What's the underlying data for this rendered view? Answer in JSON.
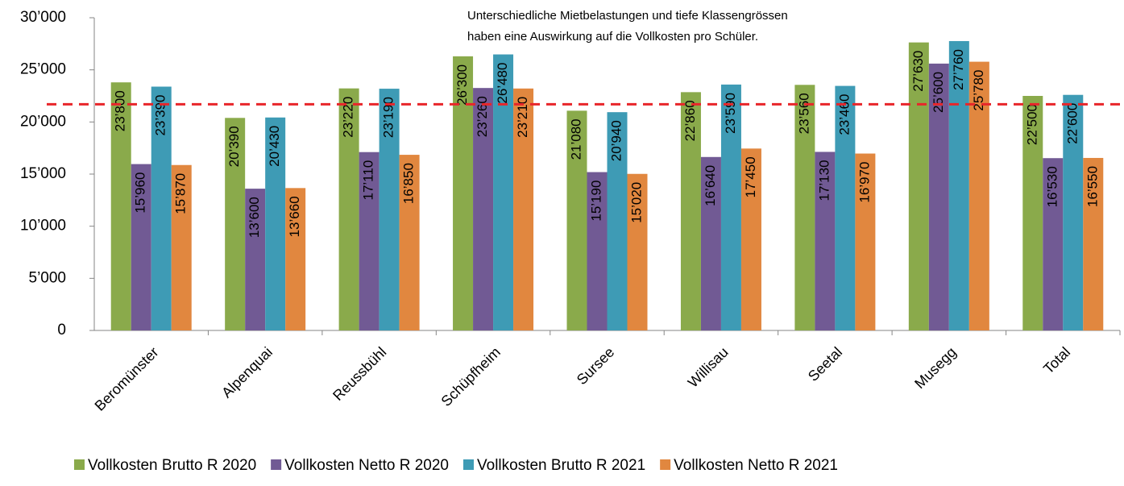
{
  "chart_data": {
    "type": "bar",
    "annotation": [
      "Unterschiedliche Mietbelastungen und tiefe Klassengrössen",
      "haben eine Auswirkung auf die Vollkosten pro Schüler."
    ],
    "categories": [
      "Beromünster",
      "Alpenquai",
      "Reussbühl",
      "Schüpfheim",
      "Sursee",
      "Willisau",
      "Seetal",
      "Musegg",
      "Total"
    ],
    "series": [
      {
        "name": "Vollkosten Brutto R 2020",
        "color": "#8aaa4b",
        "values": [
          23800,
          20390,
          23220,
          26300,
          21080,
          22860,
          23560,
          27630,
          22500
        ],
        "value_labels": [
          "23’800",
          "20’390",
          "23’220",
          "26’300",
          "21’080",
          "22’860",
          "23’560",
          "27’630",
          "22’500"
        ]
      },
      {
        "name": "Vollkosten Netto R 2020",
        "color": "#715a94",
        "values": [
          15960,
          13600,
          17110,
          23260,
          15190,
          16640,
          17130,
          25600,
          16530
        ],
        "value_labels": [
          "15’960",
          "13’600",
          "17’110",
          "23’260",
          "15’190",
          "16’640",
          "17’130",
          "25’600",
          "16’530"
        ]
      },
      {
        "name": "Vollkosten Brutto R 2021",
        "color": "#3e9bb5",
        "values": [
          23390,
          20430,
          23190,
          26480,
          20940,
          23590,
          23460,
          27760,
          22600
        ],
        "value_labels": [
          "23’390",
          "20’430",
          "23’190",
          "26’480",
          "20’940",
          "23’590",
          "23’460",
          "27’760",
          "22’600"
        ]
      },
      {
        "name": "Vollkosten Netto R 2021",
        "color": "#e1873f",
        "values": [
          15870,
          13660,
          16850,
          23210,
          15020,
          17450,
          16970,
          25780,
          16550
        ],
        "value_labels": [
          "15’870",
          "13’660",
          "16’850",
          "23’210",
          "15’020",
          "17’450",
          "16’970",
          "25’780",
          "16’550"
        ]
      }
    ],
    "reference_line": {
      "value": 21700,
      "color": "#e8262a"
    },
    "ylim": [
      0,
      30000
    ],
    "yticks": [
      0,
      {
        "value": 5000,
        "label": "5’000"
      },
      {
        "value": 10000,
        "label": "10’000"
      },
      {
        "value": 15000,
        "label": "15’000"
      },
      {
        "value": 20000,
        "label": "20’000"
      },
      {
        "value": 25000,
        "label": "25’000"
      },
      {
        "value": 30000,
        "label": "30’000"
      }
    ],
    "axis_color": "#868686"
  }
}
